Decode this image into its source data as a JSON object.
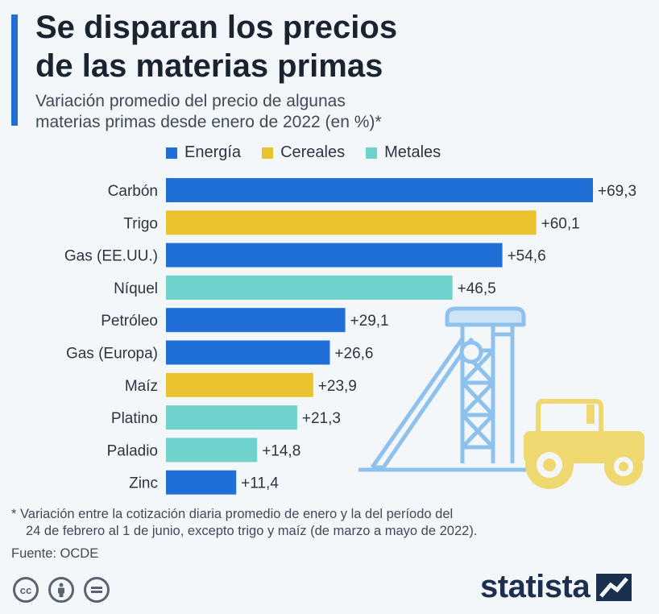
{
  "header": {
    "title_line1": "Se disparan los precios",
    "title_line2": "de las materias primas",
    "subtitle_line1": "Variación promedio del precio de algunas",
    "subtitle_line2": "materias primas desde enero de 2022 (en %)*"
  },
  "legend": [
    {
      "label": "Energía",
      "color": "#1f6fd6"
    },
    {
      "label": "Cereales",
      "color": "#e8c22f"
    },
    {
      "label": "Metales",
      "color": "#6fd3cb"
    }
  ],
  "chart_data": {
    "type": "bar",
    "orientation": "horizontal",
    "categories": [
      "Carbón",
      "Trigo",
      "Gas (EE.UU.)",
      "Níquel",
      "Petróleo",
      "Gas (Europa)",
      "Maíz",
      "Platino",
      "Paladio",
      "Zinc"
    ],
    "values": [
      69.3,
      60.1,
      54.6,
      46.5,
      29.1,
      26.6,
      23.9,
      21.3,
      14.8,
      11.4
    ],
    "value_labels": [
      "+69,3",
      "+60,1",
      "+54,6",
      "+46,5",
      "+29,1",
      "+26,6",
      "+23,9",
      "+21,3",
      "+14,8",
      "+11,4"
    ],
    "groups": [
      "Energía",
      "Cereales",
      "Energía",
      "Metales",
      "Energía",
      "Energía",
      "Cereales",
      "Metales",
      "Metales",
      "Energía"
    ],
    "xlim": [
      0,
      69.3
    ],
    "grid": false,
    "legend_position": "top"
  },
  "footnote": {
    "line1": "* Variación entre la cotización diaria promedio de enero y la del período del",
    "line2": "24 de febrero al 1 de junio, excepto trigo y maíz (de marzo a mayo de 2022)."
  },
  "source": "Fuente: OCDE",
  "brand": "statista",
  "license_icons": [
    "creative-commons-icon",
    "attribution-icon",
    "no-derivatives-icon"
  ],
  "license_text": {
    "cc": "cc"
  },
  "illustrations": [
    "mine-headframe-icon",
    "tractor-icon"
  ]
}
